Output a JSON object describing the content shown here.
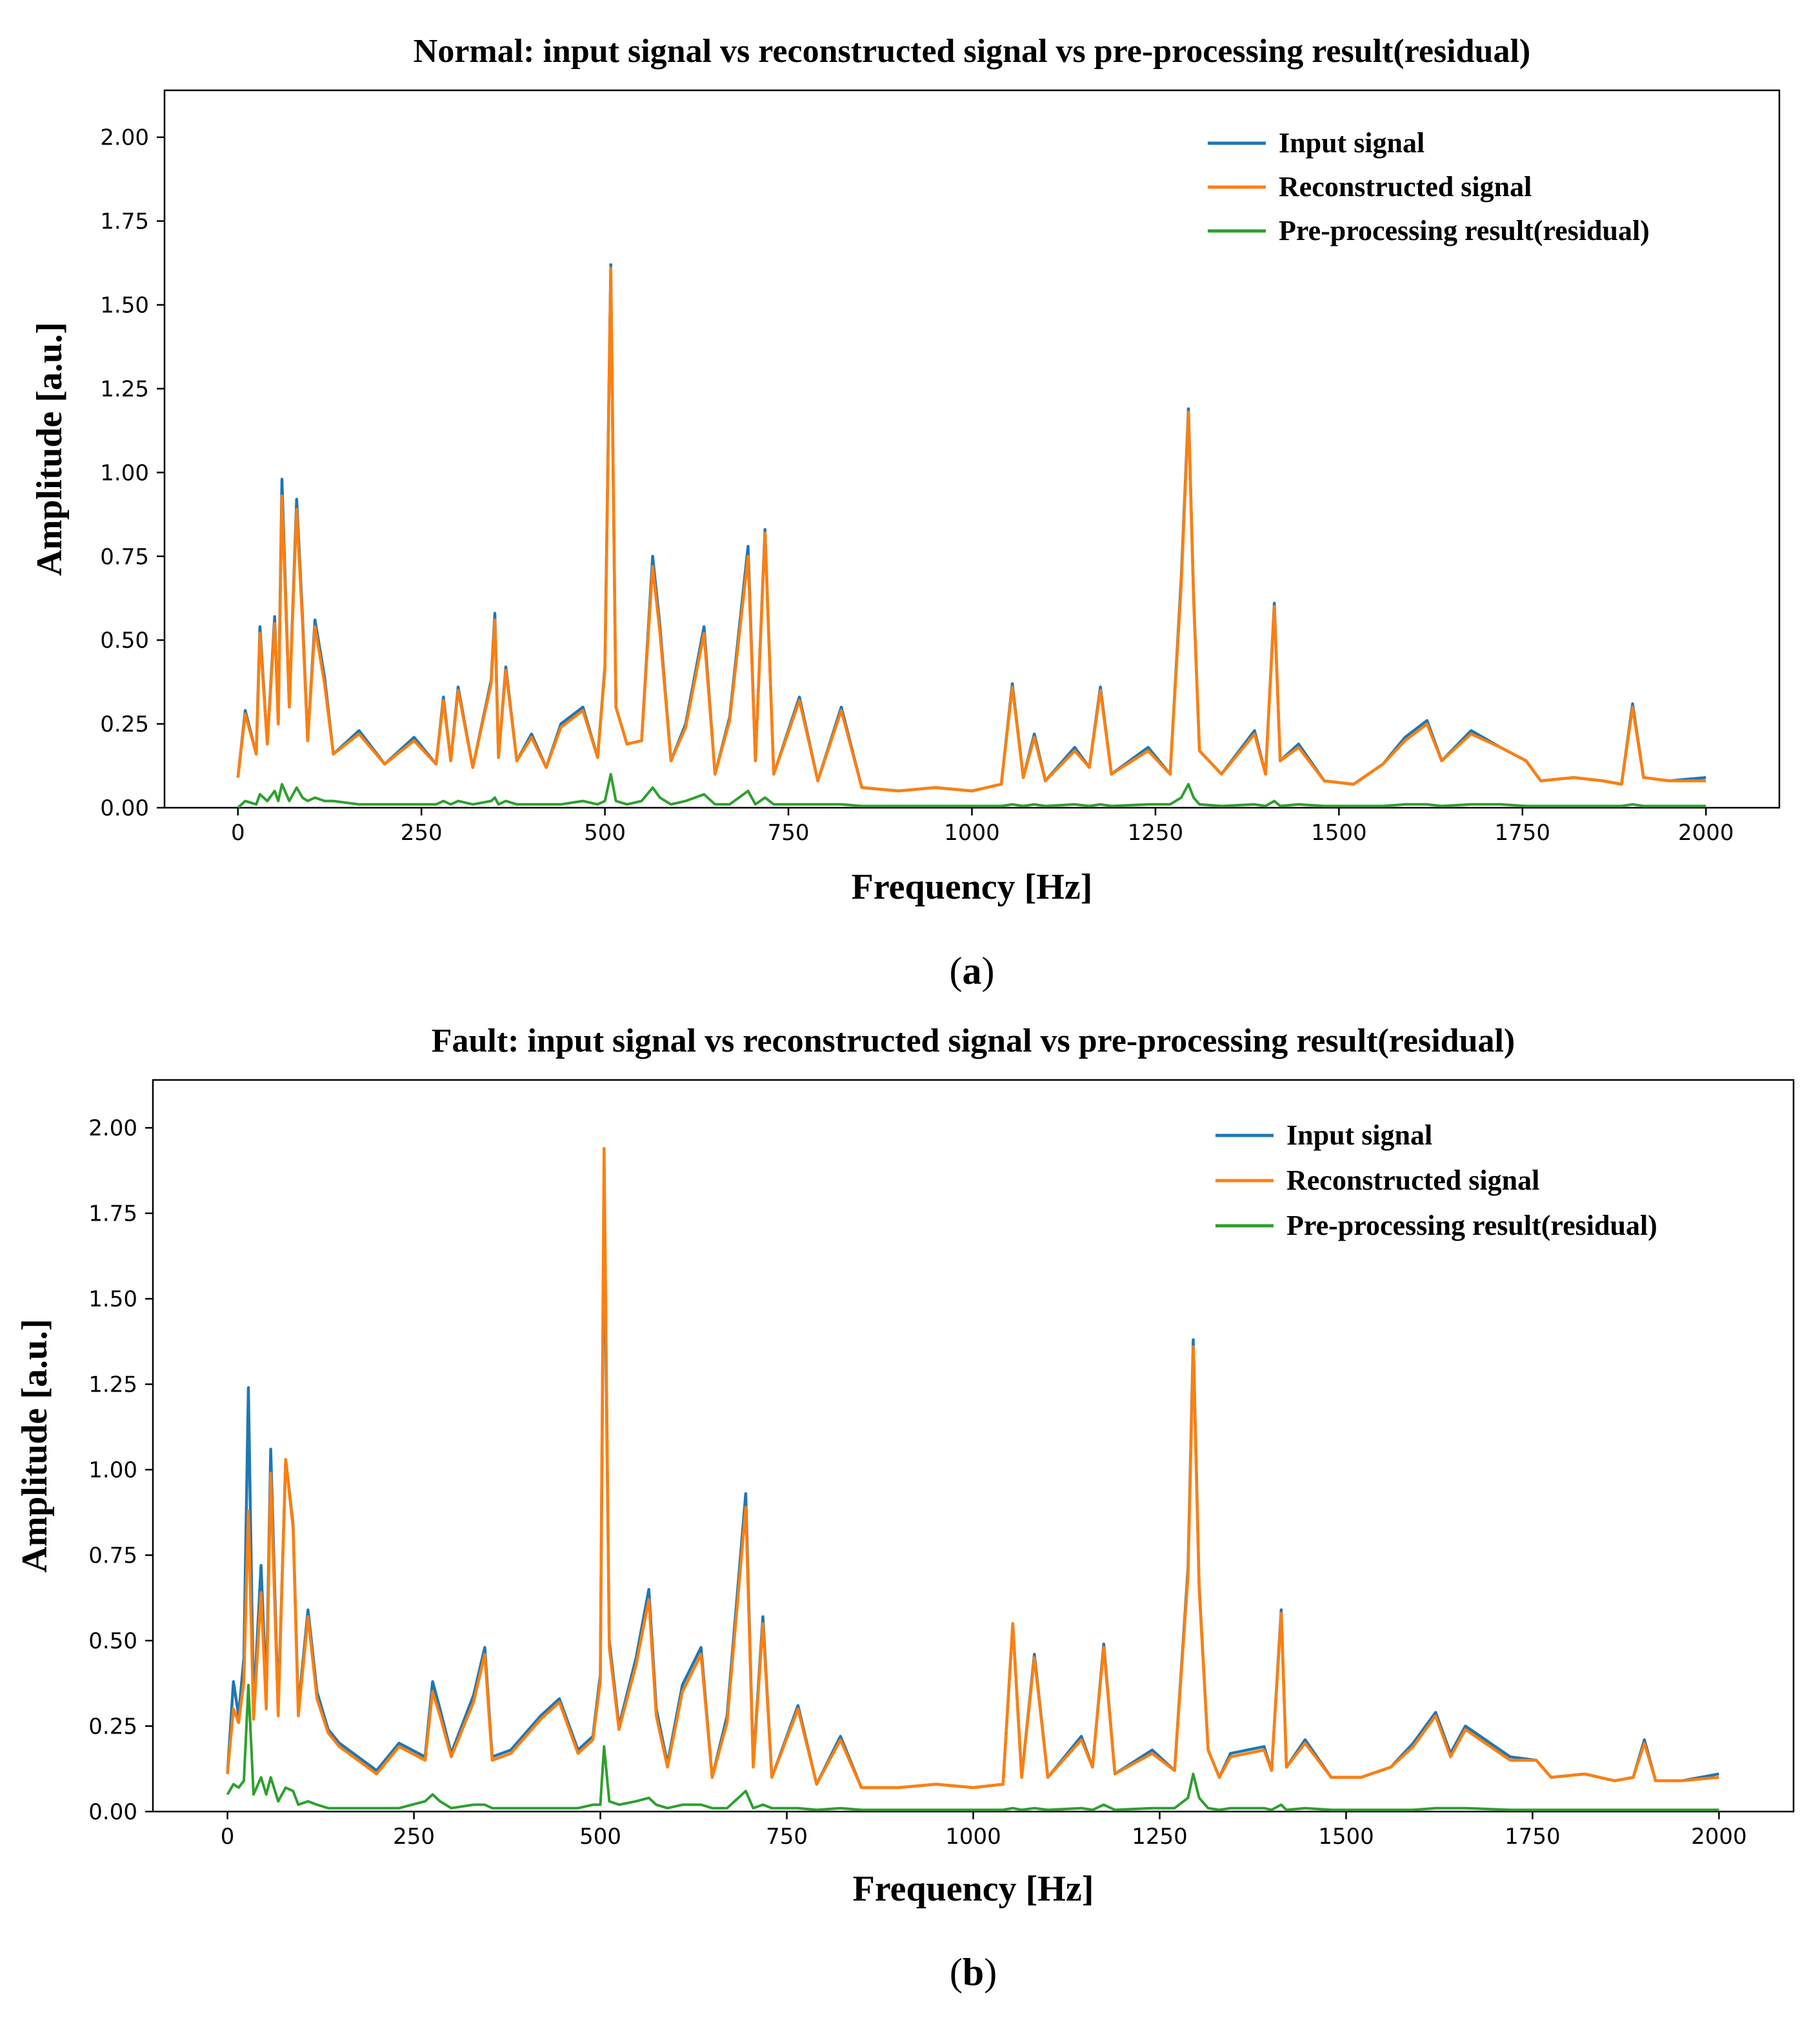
{
  "chart_data": [
    {
      "panel_label": "a",
      "type": "line",
      "title": "Normal: input signal vs reconstructed signal vs pre-processing result(residual)",
      "xlabel": "Frequency [Hz]",
      "ylabel": "Amplitude [a.u.]",
      "xlim": [
        -100,
        2100
      ],
      "ylim": [
        0,
        2.14
      ],
      "xticks": [
        0,
        250,
        500,
        750,
        1000,
        1250,
        1500,
        1750,
        2000
      ],
      "xtick_labels": [
        "0",
        "250",
        "500",
        "750",
        "1000",
        "1250",
        "1500",
        "1750",
        "2000"
      ],
      "yticks": [
        0,
        0.25,
        0.5,
        0.75,
        1.0,
        1.25,
        1.5,
        1.75,
        2.0
      ],
      "ytick_labels": [
        "0.00",
        "0.25",
        "0.50",
        "0.75",
        "1.00",
        "1.25",
        "1.50",
        "1.75",
        "2.00"
      ],
      "legend_position": "top-right",
      "x": [
        0,
        10,
        25,
        30,
        40,
        50,
        55,
        60,
        70,
        80,
        88,
        95,
        105,
        118,
        130,
        165,
        200,
        240,
        270,
        280,
        290,
        300,
        320,
        345,
        350,
        355,
        365,
        380,
        400,
        420,
        440,
        470,
        490,
        500,
        508,
        515,
        530,
        550,
        565,
        575,
        590,
        610,
        635,
        650,
        670,
        695,
        705,
        718,
        730,
        765,
        790,
        822,
        850,
        900,
        950,
        1000,
        1040,
        1055,
        1070,
        1085,
        1100,
        1140,
        1160,
        1175,
        1190,
        1240,
        1270,
        1285,
        1295,
        1302,
        1310,
        1340,
        1385,
        1400,
        1412,
        1420,
        1445,
        1480,
        1520,
        1560,
        1590,
        1620,
        1640,
        1680,
        1720,
        1755,
        1775,
        1820,
        1860,
        1885,
        1900,
        1915,
        1950,
        2000
      ],
      "series": [
        {
          "name": "Input signal",
          "color": "#1f77b4",
          "values": [
            0.09,
            0.29,
            0.16,
            0.54,
            0.19,
            0.57,
            0.25,
            0.98,
            0.3,
            0.92,
            0.57,
            0.2,
            0.56,
            0.39,
            0.16,
            0.23,
            0.13,
            0.21,
            0.13,
            0.33,
            0.14,
            0.36,
            0.12,
            0.38,
            0.58,
            0.15,
            0.42,
            0.14,
            0.22,
            0.12,
            0.25,
            0.3,
            0.15,
            0.42,
            1.62,
            0.3,
            0.19,
            0.2,
            0.75,
            0.54,
            0.14,
            0.25,
            0.54,
            0.1,
            0.27,
            0.78,
            0.14,
            0.83,
            0.1,
            0.33,
            0.08,
            0.3,
            0.06,
            0.05,
            0.06,
            0.05,
            0.07,
            0.37,
            0.09,
            0.22,
            0.08,
            0.18,
            0.12,
            0.36,
            0.1,
            0.18,
            0.1,
            0.68,
            1.19,
            0.63,
            0.17,
            0.1,
            0.23,
            0.1,
            0.61,
            0.14,
            0.19,
            0.08,
            0.07,
            0.13,
            0.21,
            0.26,
            0.14,
            0.23,
            0.18,
            0.14,
            0.08,
            0.09,
            0.08,
            0.07,
            0.31,
            0.09,
            0.08,
            0.09
          ]
        },
        {
          "name": "Reconstructed signal",
          "color": "#ff7f0e",
          "values": [
            0.09,
            0.28,
            0.16,
            0.52,
            0.19,
            0.55,
            0.25,
            0.93,
            0.3,
            0.89,
            0.55,
            0.2,
            0.54,
            0.37,
            0.16,
            0.22,
            0.13,
            0.2,
            0.13,
            0.32,
            0.14,
            0.35,
            0.12,
            0.37,
            0.56,
            0.15,
            0.41,
            0.14,
            0.21,
            0.12,
            0.24,
            0.29,
            0.15,
            0.41,
            1.61,
            0.3,
            0.19,
            0.2,
            0.72,
            0.52,
            0.14,
            0.24,
            0.52,
            0.1,
            0.26,
            0.75,
            0.14,
            0.82,
            0.1,
            0.32,
            0.08,
            0.29,
            0.06,
            0.05,
            0.06,
            0.05,
            0.07,
            0.36,
            0.09,
            0.21,
            0.08,
            0.17,
            0.12,
            0.35,
            0.1,
            0.17,
            0.1,
            0.66,
            1.18,
            0.62,
            0.17,
            0.1,
            0.22,
            0.1,
            0.6,
            0.14,
            0.18,
            0.08,
            0.07,
            0.13,
            0.2,
            0.25,
            0.14,
            0.22,
            0.18,
            0.14,
            0.08,
            0.09,
            0.08,
            0.07,
            0.3,
            0.09,
            0.08,
            0.08
          ]
        },
        {
          "name": "Pre-processing result(residual)",
          "color": "#2ca02c",
          "values": [
            0.0,
            0.02,
            0.01,
            0.04,
            0.02,
            0.05,
            0.02,
            0.07,
            0.02,
            0.06,
            0.03,
            0.02,
            0.03,
            0.02,
            0.02,
            0.01,
            0.01,
            0.01,
            0.01,
            0.02,
            0.01,
            0.02,
            0.01,
            0.02,
            0.03,
            0.01,
            0.02,
            0.01,
            0.01,
            0.01,
            0.01,
            0.02,
            0.01,
            0.02,
            0.1,
            0.02,
            0.01,
            0.02,
            0.06,
            0.03,
            0.01,
            0.02,
            0.04,
            0.01,
            0.01,
            0.05,
            0.01,
            0.03,
            0.01,
            0.01,
            0.01,
            0.01,
            0.005,
            0.005,
            0.005,
            0.005,
            0.005,
            0.01,
            0.005,
            0.01,
            0.005,
            0.01,
            0.005,
            0.01,
            0.005,
            0.01,
            0.01,
            0.03,
            0.07,
            0.03,
            0.01,
            0.005,
            0.01,
            0.005,
            0.02,
            0.005,
            0.01,
            0.005,
            0.005,
            0.005,
            0.01,
            0.01,
            0.005,
            0.01,
            0.01,
            0.005,
            0.005,
            0.005,
            0.005,
            0.005,
            0.01,
            0.005,
            0.005,
            0.005
          ]
        }
      ]
    },
    {
      "panel_label": "b",
      "type": "line",
      "title": "Fault: input signal vs reconstructed signal vs pre-processing result(residual)",
      "xlabel": "Frequency [Hz]",
      "ylabel": "Amplitude [a.u.]",
      "xlim": [
        -100,
        2100
      ],
      "ylim": [
        0,
        2.14
      ],
      "xticks": [
        0,
        250,
        500,
        750,
        1000,
        1250,
        1500,
        1750,
        2000
      ],
      "xtick_labels": [
        "0",
        "250",
        "500",
        "750",
        "1000",
        "1250",
        "1500",
        "1750",
        "2000"
      ],
      "yticks": [
        0,
        0.25,
        0.5,
        0.75,
        1.0,
        1.25,
        1.5,
        1.75,
        2.0
      ],
      "ytick_labels": [
        "0.00",
        "0.25",
        "0.50",
        "0.75",
        "1.00",
        "1.25",
        "1.50",
        "1.75",
        "2.00"
      ],
      "legend_position": "top-right",
      "x": [
        0,
        8,
        15,
        22,
        28,
        35,
        45,
        52,
        58,
        68,
        78,
        88,
        95,
        108,
        120,
        135,
        150,
        200,
        230,
        265,
        275,
        285,
        300,
        330,
        345,
        355,
        380,
        420,
        445,
        470,
        490,
        500,
        505,
        512,
        525,
        548,
        565,
        575,
        590,
        610,
        635,
        650,
        670,
        695,
        705,
        718,
        730,
        765,
        790,
        822,
        850,
        900,
        950,
        1000,
        1040,
        1053,
        1065,
        1082,
        1100,
        1145,
        1160,
        1175,
        1190,
        1240,
        1270,
        1288,
        1295,
        1303,
        1315,
        1330,
        1345,
        1390,
        1400,
        1413,
        1420,
        1445,
        1480,
        1520,
        1560,
        1590,
        1620,
        1640,
        1660,
        1720,
        1755,
        1775,
        1820,
        1860,
        1885,
        1900,
        1915,
        1950,
        2000
      ],
      "series": [
        {
          "name": "Input signal",
          "color": "#1f77b4",
          "values": [
            0.11,
            0.38,
            0.28,
            0.45,
            1.24,
            0.3,
            0.72,
            0.34,
            1.06,
            0.3,
            1.03,
            0.84,
            0.3,
            0.59,
            0.35,
            0.24,
            0.2,
            0.12,
            0.2,
            0.16,
            0.38,
            0.3,
            0.17,
            0.34,
            0.48,
            0.16,
            0.18,
            0.28,
            0.33,
            0.18,
            0.22,
            0.4,
            1.81,
            0.5,
            0.25,
            0.45,
            0.65,
            0.3,
            0.14,
            0.37,
            0.48,
            0.1,
            0.28,
            0.93,
            0.14,
            0.57,
            0.1,
            0.31,
            0.08,
            0.22,
            0.07,
            0.07,
            0.08,
            0.07,
            0.08,
            0.55,
            0.1,
            0.46,
            0.1,
            0.22,
            0.13,
            0.49,
            0.11,
            0.18,
            0.12,
            0.71,
            1.38,
            0.66,
            0.18,
            0.1,
            0.17,
            0.19,
            0.12,
            0.59,
            0.13,
            0.21,
            0.1,
            0.1,
            0.13,
            0.2,
            0.29,
            0.17,
            0.25,
            0.16,
            0.15,
            0.1,
            0.11,
            0.09,
            0.1,
            0.21,
            0.09,
            0.09,
            0.11
          ]
        },
        {
          "name": "Reconstructed signal",
          "color": "#ff7f0e",
          "values": [
            0.11,
            0.3,
            0.26,
            0.38,
            0.88,
            0.27,
            0.64,
            0.3,
            0.99,
            0.28,
            1.03,
            0.83,
            0.28,
            0.57,
            0.33,
            0.23,
            0.19,
            0.11,
            0.19,
            0.15,
            0.35,
            0.28,
            0.16,
            0.32,
            0.46,
            0.15,
            0.17,
            0.27,
            0.32,
            0.17,
            0.21,
            0.38,
            1.94,
            0.48,
            0.24,
            0.43,
            0.62,
            0.28,
            0.13,
            0.35,
            0.46,
            0.1,
            0.26,
            0.89,
            0.13,
            0.55,
            0.1,
            0.3,
            0.08,
            0.21,
            0.07,
            0.07,
            0.08,
            0.07,
            0.08,
            0.55,
            0.1,
            0.45,
            0.1,
            0.21,
            0.13,
            0.48,
            0.11,
            0.17,
            0.12,
            0.69,
            1.36,
            0.65,
            0.18,
            0.1,
            0.16,
            0.18,
            0.12,
            0.58,
            0.13,
            0.2,
            0.1,
            0.1,
            0.13,
            0.19,
            0.28,
            0.16,
            0.24,
            0.15,
            0.15,
            0.1,
            0.11,
            0.09,
            0.1,
            0.2,
            0.09,
            0.09,
            0.1
          ]
        },
        {
          "name": "Pre-processing result(residual)",
          "color": "#2ca02c",
          "values": [
            0.05,
            0.08,
            0.07,
            0.09,
            0.37,
            0.05,
            0.1,
            0.05,
            0.1,
            0.03,
            0.07,
            0.06,
            0.02,
            0.03,
            0.02,
            0.01,
            0.01,
            0.01,
            0.01,
            0.03,
            0.05,
            0.03,
            0.01,
            0.02,
            0.02,
            0.01,
            0.01,
            0.01,
            0.01,
            0.01,
            0.02,
            0.02,
            0.19,
            0.03,
            0.02,
            0.03,
            0.04,
            0.02,
            0.01,
            0.02,
            0.02,
            0.01,
            0.01,
            0.06,
            0.01,
            0.02,
            0.01,
            0.01,
            0.005,
            0.01,
            0.005,
            0.005,
            0.005,
            0.005,
            0.005,
            0.01,
            0.005,
            0.01,
            0.005,
            0.01,
            0.005,
            0.02,
            0.005,
            0.01,
            0.01,
            0.04,
            0.11,
            0.04,
            0.01,
            0.005,
            0.01,
            0.01,
            0.005,
            0.02,
            0.005,
            0.01,
            0.005,
            0.005,
            0.005,
            0.005,
            0.01,
            0.01,
            0.01,
            0.005,
            0.005,
            0.005,
            0.005,
            0.005,
            0.005,
            0.005,
            0.005,
            0.005,
            0.005
          ]
        }
      ]
    }
  ]
}
